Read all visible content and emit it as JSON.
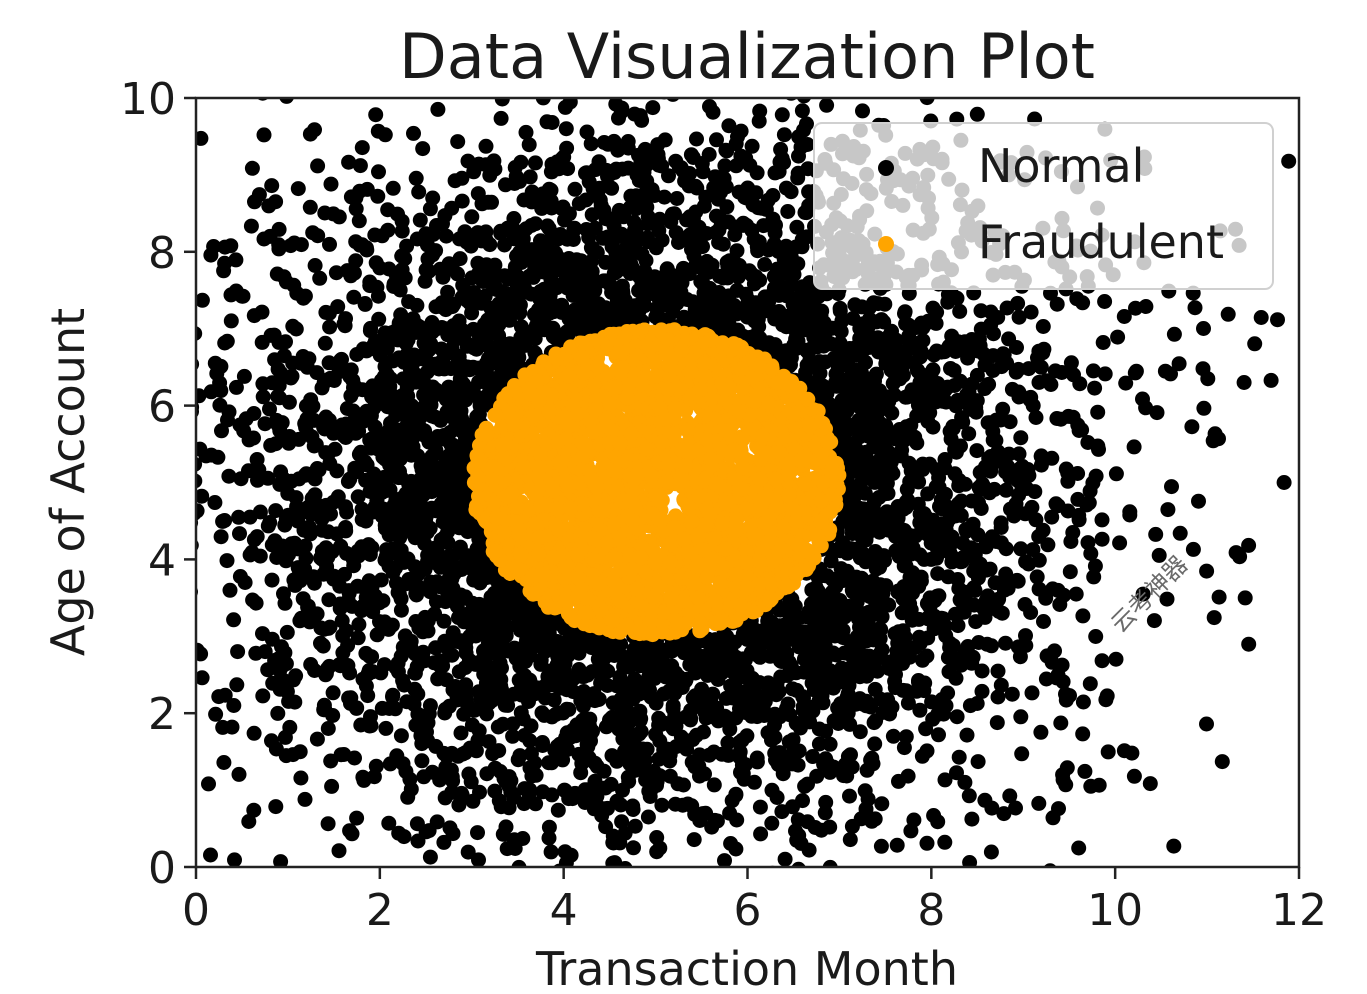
{
  "chart_data": {
    "type": "scatter",
    "title": "Data Visualization Plot",
    "xlabel": "Transaction Month",
    "ylabel": "Age of Account",
    "xlim": [
      0,
      12
    ],
    "ylim": [
      0,
      10
    ],
    "xticks": [
      "0",
      "2",
      "4",
      "6",
      "8",
      "10",
      "12"
    ],
    "yticks": [
      "0",
      "2",
      "4",
      "6",
      "8",
      "10"
    ],
    "grid": false,
    "legend_position": "top-right",
    "series": [
      {
        "name": "Normal",
        "color": "#000000",
        "distribution": {
          "shape": "ring",
          "center": [
            5,
            5
          ],
          "inner_radius": 2,
          "spread_sd": 2.2,
          "approx_count": 4500
        }
      },
      {
        "name": "Fraudulent",
        "color": "#ffa500",
        "distribution": {
          "shape": "disk",
          "center": [
            5,
            5
          ],
          "radius": 2,
          "approx_count": 3000
        }
      }
    ]
  },
  "watermark": {
    "text": "云考神器"
  }
}
